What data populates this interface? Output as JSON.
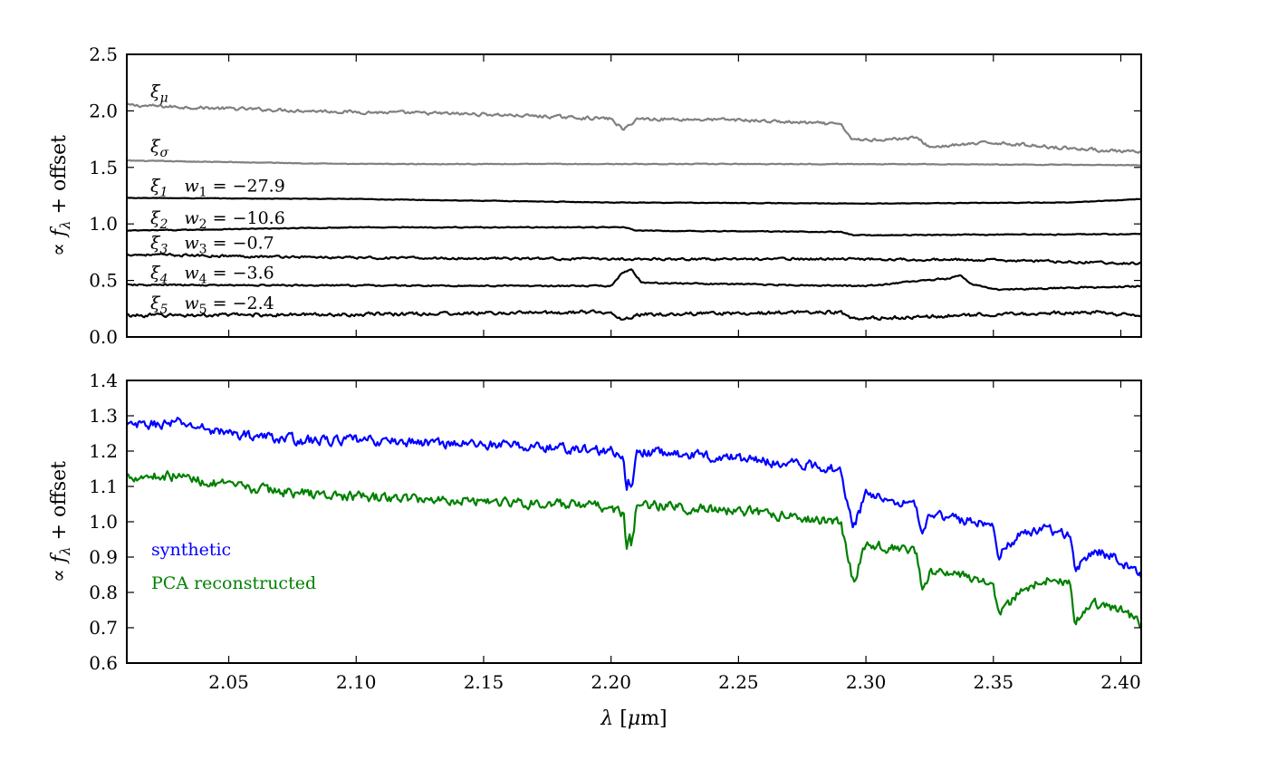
{
  "chart_data": [
    {
      "type": "line",
      "title": "",
      "xlabel": "",
      "ylabel": "∝ f_λ + offset",
      "ylabel_parts": {
        "prop": "∝ ",
        "f": "f",
        "sub": "λ",
        "rest": " + offset"
      },
      "xlim": [
        2.01,
        2.408
      ],
      "ylim": [
        0.0,
        2.5
      ],
      "yticks": [
        "0.0",
        "0.5",
        "1.0",
        "1.5",
        "2.0",
        "2.5"
      ],
      "grid": false,
      "series": [
        {
          "key": "xi_mu",
          "label_symbol": "ξ",
          "label_sub": "μ",
          "weight": "",
          "color": "#808080",
          "x": [
            2.01,
            2.05,
            2.1,
            2.15,
            2.2,
            2.205,
            2.21,
            2.25,
            2.29,
            2.295,
            2.32,
            2.325,
            2.35,
            2.38,
            2.408
          ],
          "y": [
            2.05,
            2.02,
            1.99,
            1.97,
            1.93,
            1.83,
            1.93,
            1.92,
            1.88,
            1.74,
            1.76,
            1.68,
            1.72,
            1.67,
            1.63
          ]
        },
        {
          "key": "xi_sigma",
          "label_symbol": "ξ",
          "label_sub": "σ",
          "weight": "",
          "color": "#808080",
          "x": [
            2.01,
            2.1,
            2.2,
            2.3,
            2.408
          ],
          "y": [
            1.56,
            1.53,
            1.53,
            1.53,
            1.52
          ]
        },
        {
          "key": "xi_1",
          "label_symbol": "ξ",
          "label_sub": "1",
          "weight_symbol": "w",
          "weight_sub": "1",
          "weight": "−27.9",
          "color": "#000000",
          "x": [
            2.01,
            2.1,
            2.2,
            2.3,
            2.38,
            2.408
          ],
          "y": [
            1.23,
            1.22,
            1.19,
            1.18,
            1.19,
            1.22
          ]
        },
        {
          "key": "xi_2",
          "label_symbol": "ξ",
          "label_sub": "2",
          "weight_symbol": "w",
          "weight_sub": "2",
          "weight": "−10.6",
          "color": "#000000",
          "x": [
            2.01,
            2.1,
            2.205,
            2.21,
            2.29,
            2.295,
            2.408
          ],
          "y": [
            0.94,
            0.97,
            0.97,
            0.94,
            0.93,
            0.9,
            0.91
          ]
        },
        {
          "key": "xi_3",
          "label_symbol": "ξ",
          "label_sub": "3",
          "weight_symbol": "w",
          "weight_sub": "3",
          "weight": "−0.7",
          "color": "#000000",
          "x": [
            2.01,
            2.1,
            2.2,
            2.3,
            2.35,
            2.408
          ],
          "y": [
            0.73,
            0.7,
            0.69,
            0.69,
            0.68,
            0.65
          ]
        },
        {
          "key": "xi_4",
          "label_symbol": "ξ",
          "label_sub": "4",
          "weight_symbol": "w",
          "weight_sub": "4",
          "weight": "−3.6",
          "color": "#000000",
          "x": [
            2.01,
            2.2,
            2.204,
            2.208,
            2.212,
            2.3,
            2.333,
            2.337,
            2.341,
            2.35,
            2.408
          ],
          "y": [
            0.46,
            0.45,
            0.56,
            0.6,
            0.48,
            0.45,
            0.52,
            0.55,
            0.47,
            0.42,
            0.45
          ]
        },
        {
          "key": "xi_5",
          "label_symbol": "ξ",
          "label_sub": "5",
          "weight_symbol": "w",
          "weight_sub": "5",
          "weight": "−2.4",
          "color": "#000000",
          "x": [
            2.01,
            2.1,
            2.2,
            2.205,
            2.21,
            2.29,
            2.295,
            2.35,
            2.39,
            2.408
          ],
          "y": [
            0.19,
            0.2,
            0.22,
            0.15,
            0.2,
            0.22,
            0.16,
            0.2,
            0.22,
            0.18
          ]
        }
      ]
    },
    {
      "type": "line",
      "title": "",
      "xlabel": "λ [μm]",
      "xlabel_parts": {
        "lam": "λ",
        "rest": " [",
        "mu": "μ",
        "unit": "m]"
      },
      "ylabel": "∝ f_λ + offset",
      "ylabel_parts": {
        "prop": "∝ ",
        "f": "f",
        "sub": "λ",
        "rest": " + offset"
      },
      "xlim": [
        2.01,
        2.408
      ],
      "ylim": [
        0.6,
        1.4
      ],
      "xticks": [
        2.05,
        2.1,
        2.15,
        2.2,
        2.25,
        2.3,
        2.35,
        2.4
      ],
      "xtick_labels": [
        "2.05",
        "2.10",
        "2.15",
        "2.20",
        "2.25",
        "2.30",
        "2.35",
        "2.40"
      ],
      "yticks": [
        "0.6",
        "0.7",
        "0.8",
        "0.9",
        "1.0",
        "1.1",
        "1.2",
        "1.3",
        "1.4"
      ],
      "grid": false,
      "legend": "lower-left",
      "series": [
        {
          "key": "synthetic",
          "name": "synthetic",
          "color": "#0000ff",
          "x": [
            2.01,
            2.03,
            2.05,
            2.08,
            2.1,
            2.15,
            2.2,
            2.205,
            2.206,
            2.207,
            2.208,
            2.209,
            2.21,
            2.25,
            2.29,
            2.293,
            2.295,
            2.3,
            2.32,
            2.322,
            2.325,
            2.35,
            2.352,
            2.36,
            2.37,
            2.38,
            2.382,
            2.39,
            2.4,
            2.408
          ],
          "y": [
            1.27,
            1.28,
            1.25,
            1.23,
            1.23,
            1.22,
            1.2,
            1.17,
            1.07,
            1.12,
            1.09,
            1.13,
            1.2,
            1.18,
            1.15,
            1.05,
            0.98,
            1.08,
            1.05,
            0.95,
            1.02,
            0.99,
            0.91,
            0.96,
            0.98,
            0.96,
            0.87,
            0.92,
            0.89,
            0.85
          ]
        },
        {
          "key": "pca",
          "name": "PCA reconstructed",
          "color": "#008000",
          "x": [
            2.01,
            2.03,
            2.05,
            2.08,
            2.1,
            2.15,
            2.2,
            2.205,
            2.206,
            2.207,
            2.208,
            2.209,
            2.21,
            2.25,
            2.29,
            2.293,
            2.295,
            2.3,
            2.32,
            2.322,
            2.325,
            2.35,
            2.352,
            2.36,
            2.37,
            2.38,
            2.382,
            2.39,
            2.4,
            2.408
          ],
          "y": [
            1.13,
            1.13,
            1.1,
            1.08,
            1.07,
            1.06,
            1.04,
            1.02,
            0.91,
            0.97,
            0.93,
            0.97,
            1.05,
            1.03,
            1.0,
            0.9,
            0.83,
            0.94,
            0.91,
            0.8,
            0.86,
            0.83,
            0.74,
            0.8,
            0.84,
            0.82,
            0.72,
            0.77,
            0.75,
            0.71
          ]
        }
      ]
    }
  ]
}
